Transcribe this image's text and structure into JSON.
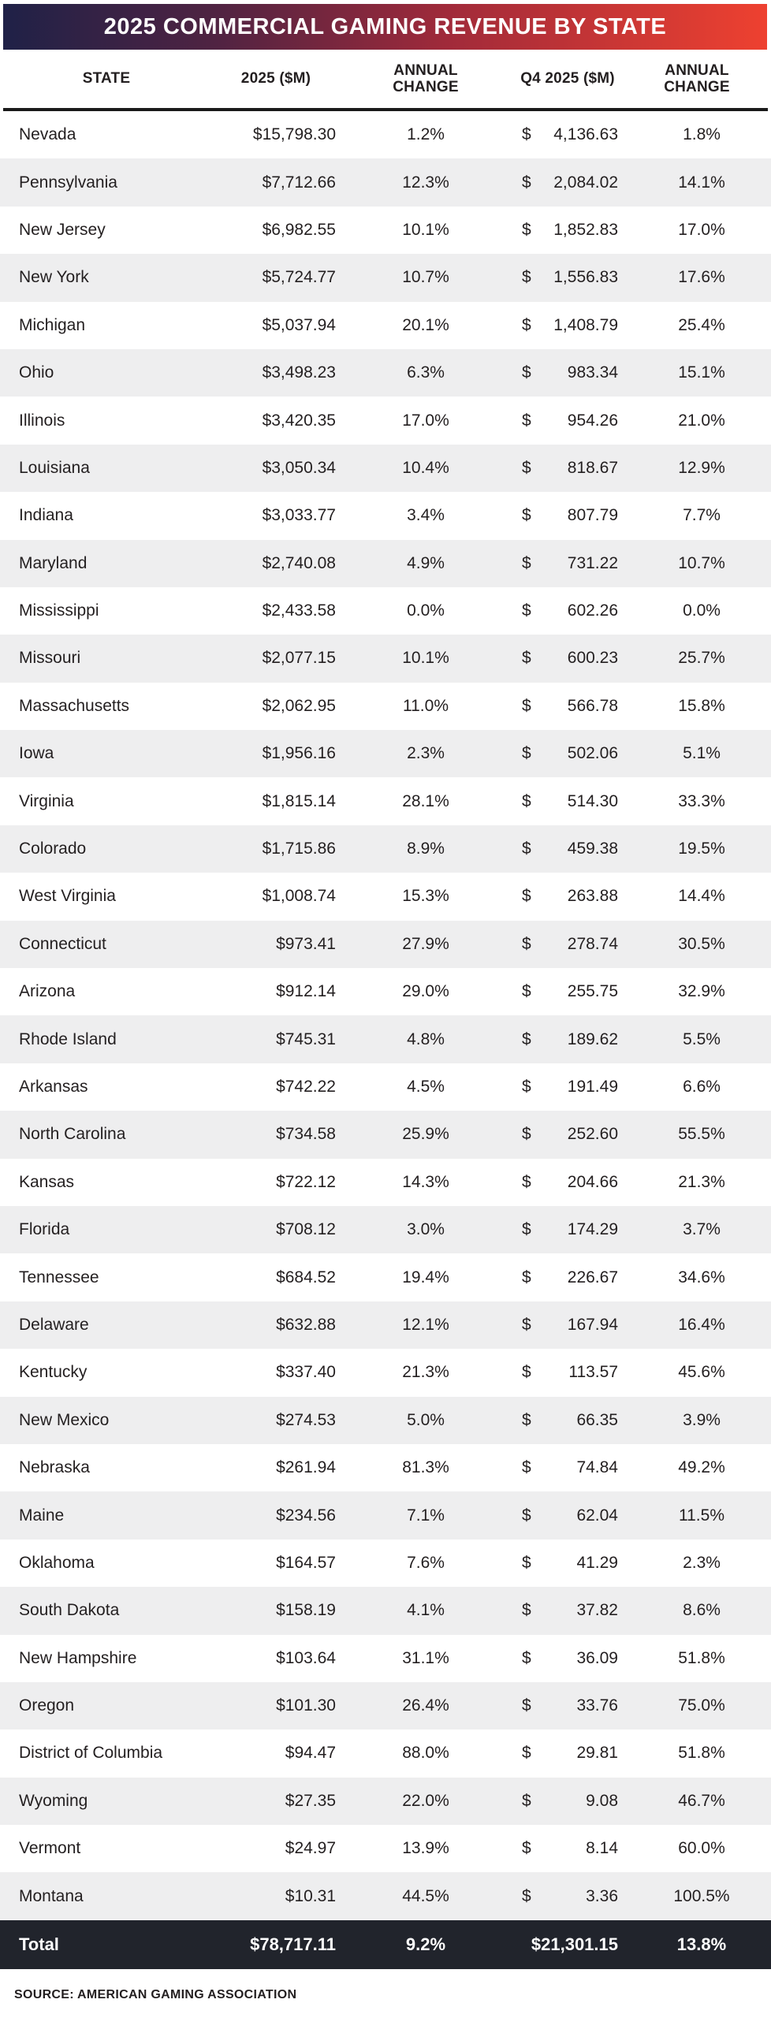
{
  "title": "2025 COMMERCIAL GAMING REVENUE BY STATE",
  "columns": [
    "STATE",
    "2025 ($M)",
    "ANNUAL CHANGE",
    "Q4 2025 ($M)",
    "ANNUAL CHANGE"
  ],
  "currency_symbol": "$",
  "rows": [
    {
      "state": "Nevada",
      "revenue_2025": "$15,798.30",
      "annual_change": "1.2%",
      "q4_revenue": "4,136.63",
      "q4_annual_change": "1.8%"
    },
    {
      "state": "Pennsylvania",
      "revenue_2025": "$7,712.66",
      "annual_change": "12.3%",
      "q4_revenue": "2,084.02",
      "q4_annual_change": "14.1%"
    },
    {
      "state": "New Jersey",
      "revenue_2025": "$6,982.55",
      "annual_change": "10.1%",
      "q4_revenue": "1,852.83",
      "q4_annual_change": "17.0%"
    },
    {
      "state": "New York",
      "revenue_2025": "$5,724.77",
      "annual_change": "10.7%",
      "q4_revenue": "1,556.83",
      "q4_annual_change": "17.6%"
    },
    {
      "state": "Michigan",
      "revenue_2025": "$5,037.94",
      "annual_change": "20.1%",
      "q4_revenue": "1,408.79",
      "q4_annual_change": "25.4%"
    },
    {
      "state": "Ohio",
      "revenue_2025": "$3,498.23",
      "annual_change": "6.3%",
      "q4_revenue": "983.34",
      "q4_annual_change": "15.1%"
    },
    {
      "state": "Illinois",
      "revenue_2025": "$3,420.35",
      "annual_change": "17.0%",
      "q4_revenue": "954.26",
      "q4_annual_change": "21.0%"
    },
    {
      "state": "Louisiana",
      "revenue_2025": "$3,050.34",
      "annual_change": "10.4%",
      "q4_revenue": "818.67",
      "q4_annual_change": "12.9%"
    },
    {
      "state": "Indiana",
      "revenue_2025": "$3,033.77",
      "annual_change": "3.4%",
      "q4_revenue": "807.79",
      "q4_annual_change": "7.7%"
    },
    {
      "state": "Maryland",
      "revenue_2025": "$2,740.08",
      "annual_change": "4.9%",
      "q4_revenue": "731.22",
      "q4_annual_change": "10.7%"
    },
    {
      "state": "Mississippi",
      "revenue_2025": "$2,433.58",
      "annual_change": "0.0%",
      "q4_revenue": "602.26",
      "q4_annual_change": "0.0%"
    },
    {
      "state": "Missouri",
      "revenue_2025": "$2,077.15",
      "annual_change": "10.1%",
      "q4_revenue": "600.23",
      "q4_annual_change": "25.7%"
    },
    {
      "state": "Massachusetts",
      "revenue_2025": "$2,062.95",
      "annual_change": "11.0%",
      "q4_revenue": "566.78",
      "q4_annual_change": "15.8%"
    },
    {
      "state": "Iowa",
      "revenue_2025": "$1,956.16",
      "annual_change": "2.3%",
      "q4_revenue": "502.06",
      "q4_annual_change": "5.1%"
    },
    {
      "state": "Virginia",
      "revenue_2025": "$1,815.14",
      "annual_change": "28.1%",
      "q4_revenue": "514.30",
      "q4_annual_change": "33.3%"
    },
    {
      "state": "Colorado",
      "revenue_2025": "$1,715.86",
      "annual_change": "8.9%",
      "q4_revenue": "459.38",
      "q4_annual_change": "19.5%"
    },
    {
      "state": "West Virginia",
      "revenue_2025": "$1,008.74",
      "annual_change": "15.3%",
      "q4_revenue": "263.88",
      "q4_annual_change": "14.4%"
    },
    {
      "state": "Connecticut",
      "revenue_2025": "$973.41",
      "annual_change": "27.9%",
      "q4_revenue": "278.74",
      "q4_annual_change": "30.5%"
    },
    {
      "state": "Arizona",
      "revenue_2025": "$912.14",
      "annual_change": "29.0%",
      "q4_revenue": "255.75",
      "q4_annual_change": "32.9%"
    },
    {
      "state": "Rhode Island",
      "revenue_2025": "$745.31",
      "annual_change": "4.8%",
      "q4_revenue": "189.62",
      "q4_annual_change": "5.5%"
    },
    {
      "state": "Arkansas",
      "revenue_2025": "$742.22",
      "annual_change": "4.5%",
      "q4_revenue": "191.49",
      "q4_annual_change": "6.6%"
    },
    {
      "state": "North Carolina",
      "revenue_2025": "$734.58",
      "annual_change": "25.9%",
      "q4_revenue": "252.60",
      "q4_annual_change": "55.5%"
    },
    {
      "state": "Kansas",
      "revenue_2025": "$722.12",
      "annual_change": "14.3%",
      "q4_revenue": "204.66",
      "q4_annual_change": "21.3%"
    },
    {
      "state": "Florida",
      "revenue_2025": "$708.12",
      "annual_change": "3.0%",
      "q4_revenue": "174.29",
      "q4_annual_change": "3.7%"
    },
    {
      "state": "Tennessee",
      "revenue_2025": "$684.52",
      "annual_change": "19.4%",
      "q4_revenue": "226.67",
      "q4_annual_change": "34.6%"
    },
    {
      "state": "Delaware",
      "revenue_2025": "$632.88",
      "annual_change": "12.1%",
      "q4_revenue": "167.94",
      "q4_annual_change": "16.4%"
    },
    {
      "state": "Kentucky",
      "revenue_2025": "$337.40",
      "annual_change": "21.3%",
      "q4_revenue": "113.57",
      "q4_annual_change": "45.6%"
    },
    {
      "state": "New Mexico",
      "revenue_2025": "$274.53",
      "annual_change": "5.0%",
      "q4_revenue": "66.35",
      "q4_annual_change": "3.9%"
    },
    {
      "state": "Nebraska",
      "revenue_2025": "$261.94",
      "annual_change": "81.3%",
      "q4_revenue": "74.84",
      "q4_annual_change": "49.2%"
    },
    {
      "state": "Maine",
      "revenue_2025": "$234.56",
      "annual_change": "7.1%",
      "q4_revenue": "62.04",
      "q4_annual_change": "11.5%"
    },
    {
      "state": "Oklahoma",
      "revenue_2025": "$164.57",
      "annual_change": "7.6%",
      "q4_revenue": "41.29",
      "q4_annual_change": "2.3%"
    },
    {
      "state": "South Dakota",
      "revenue_2025": "$158.19",
      "annual_change": "4.1%",
      "q4_revenue": "37.82",
      "q4_annual_change": "8.6%"
    },
    {
      "state": "New Hampshire",
      "revenue_2025": "$103.64",
      "annual_change": "31.1%",
      "q4_revenue": "36.09",
      "q4_annual_change": "51.8%"
    },
    {
      "state": "Oregon",
      "revenue_2025": "$101.30",
      "annual_change": "26.4%",
      "q4_revenue": "33.76",
      "q4_annual_change": "75.0%"
    },
    {
      "state": "District of Columbia",
      "revenue_2025": "$94.47",
      "annual_change": "88.0%",
      "q4_revenue": "29.81",
      "q4_annual_change": "51.8%"
    },
    {
      "state": "Wyoming",
      "revenue_2025": "$27.35",
      "annual_change": "22.0%",
      "q4_revenue": "9.08",
      "q4_annual_change": "46.7%"
    },
    {
      "state": "Vermont",
      "revenue_2025": "$24.97",
      "annual_change": "13.9%",
      "q4_revenue": "8.14",
      "q4_annual_change": "60.0%"
    },
    {
      "state": "Montana",
      "revenue_2025": "$10.31",
      "annual_change": "44.5%",
      "q4_revenue": "3.36",
      "q4_annual_change": "100.5%"
    }
  ],
  "total": {
    "label": "Total",
    "revenue_2025": "$78,717.11",
    "annual_change": "9.2%",
    "q4_revenue": "$21,301.15",
    "q4_annual_change": "13.8%"
  },
  "source": "SOURCE: AMERICAN GAMING ASSOCIATION",
  "colors": {
    "title_gradient_start": "#1f2147",
    "title_gradient_mid1": "#502342",
    "title_gradient_mid2": "#a02a3a",
    "title_gradient_end": "#ee4130",
    "stripe_gray": "#eeeeef",
    "total_row_bg": "#21242c",
    "body_text": "#231f20",
    "header_rule": "#1a1a1a"
  },
  "chart_data": {
    "type": "table",
    "title": "2025 COMMERCIAL GAMING REVENUE BY STATE",
    "columns": [
      "State",
      "2025 ($M)",
      "Annual Change (%)",
      "Q4 2025 ($M)",
      "Q4 Annual Change (%)"
    ],
    "rows": [
      [
        "Nevada",
        15798.3,
        1.2,
        4136.63,
        1.8
      ],
      [
        "Pennsylvania",
        7712.66,
        12.3,
        2084.02,
        14.1
      ],
      [
        "New Jersey",
        6982.55,
        10.1,
        1852.83,
        17.0
      ],
      [
        "New York",
        5724.77,
        10.7,
        1556.83,
        17.6
      ],
      [
        "Michigan",
        5037.94,
        20.1,
        1408.79,
        25.4
      ],
      [
        "Ohio",
        3498.23,
        6.3,
        983.34,
        15.1
      ],
      [
        "Illinois",
        3420.35,
        17.0,
        954.26,
        21.0
      ],
      [
        "Louisiana",
        3050.34,
        10.4,
        818.67,
        12.9
      ],
      [
        "Indiana",
        3033.77,
        3.4,
        807.79,
        7.7
      ],
      [
        "Maryland",
        2740.08,
        4.9,
        731.22,
        10.7
      ],
      [
        "Mississippi",
        2433.58,
        0.0,
        602.26,
        0.0
      ],
      [
        "Missouri",
        2077.15,
        10.1,
        600.23,
        25.7
      ],
      [
        "Massachusetts",
        2062.95,
        11.0,
        566.78,
        15.8
      ],
      [
        "Iowa",
        1956.16,
        2.3,
        502.06,
        5.1
      ],
      [
        "Virginia",
        1815.14,
        28.1,
        514.3,
        33.3
      ],
      [
        "Colorado",
        1715.86,
        8.9,
        459.38,
        19.5
      ],
      [
        "West Virginia",
        1008.74,
        15.3,
        263.88,
        14.4
      ],
      [
        "Connecticut",
        973.41,
        27.9,
        278.74,
        30.5
      ],
      [
        "Arizona",
        912.14,
        29.0,
        255.75,
        32.9
      ],
      [
        "Rhode Island",
        745.31,
        4.8,
        189.62,
        5.5
      ],
      [
        "Arkansas",
        742.22,
        4.5,
        191.49,
        6.6
      ],
      [
        "North Carolina",
        734.58,
        25.9,
        252.6,
        55.5
      ],
      [
        "Kansas",
        722.12,
        14.3,
        204.66,
        21.3
      ],
      [
        "Florida",
        708.12,
        3.0,
        174.29,
        3.7
      ],
      [
        "Tennessee",
        684.52,
        19.4,
        226.67,
        34.6
      ],
      [
        "Delaware",
        632.88,
        12.1,
        167.94,
        16.4
      ],
      [
        "Kentucky",
        337.4,
        21.3,
        113.57,
        45.6
      ],
      [
        "New Mexico",
        274.53,
        5.0,
        66.35,
        3.9
      ],
      [
        "Nebraska",
        261.94,
        81.3,
        74.84,
        49.2
      ],
      [
        "Maine",
        234.56,
        7.1,
        62.04,
        11.5
      ],
      [
        "Oklahoma",
        164.57,
        7.6,
        41.29,
        2.3
      ],
      [
        "South Dakota",
        158.19,
        4.1,
        37.82,
        8.6
      ],
      [
        "New Hampshire",
        103.64,
        31.1,
        36.09,
        51.8
      ],
      [
        "Oregon",
        101.3,
        26.4,
        33.76,
        75.0
      ],
      [
        "District of Columbia",
        94.47,
        88.0,
        29.81,
        51.8
      ],
      [
        "Wyoming",
        27.35,
        22.0,
        9.08,
        46.7
      ],
      [
        "Vermont",
        24.97,
        13.9,
        8.14,
        60.0
      ],
      [
        "Montana",
        10.31,
        44.5,
        3.36,
        100.5
      ]
    ],
    "total": [
      "Total",
      78717.11,
      9.2,
      21301.15,
      13.8
    ],
    "source": "American Gaming Association",
    "legend_position": "none",
    "grid": false
  }
}
